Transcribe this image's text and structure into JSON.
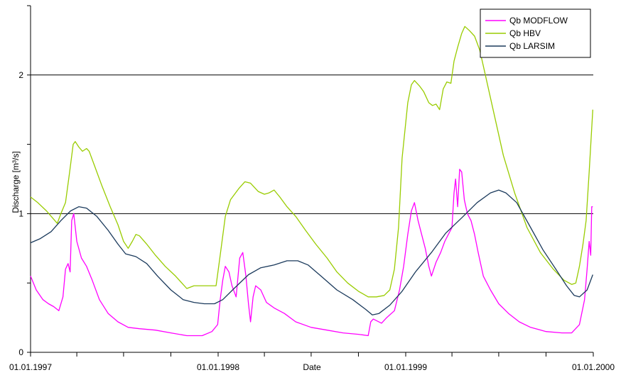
{
  "chart_data": {
    "type": "line",
    "xlabel": "Date",
    "ylabel": "Discharge [m³/s]",
    "ylim": [
      0,
      2.5
    ],
    "xlim": [
      "1997-01-01",
      "2000-01-01"
    ],
    "yticks": [
      {
        "value": 0,
        "label": "0"
      },
      {
        "value": 1,
        "label": "1"
      },
      {
        "value": 2,
        "label": "2"
      }
    ],
    "ygrid": [
      1,
      2
    ],
    "xticks_labeled": [
      {
        "date": "1997-01-01",
        "label": "01.01.1997"
      },
      {
        "date": "1998-01-01",
        "label": "01.01.1998"
      },
      {
        "date": "1999-01-01",
        "label": "01.01.1999"
      },
      {
        "date": "2000-01-01",
        "label": "01.01.2000"
      }
    ],
    "xticks_minor": [
      "1997-04-01",
      "1997-07-01",
      "1997-10-01",
      "1998-04-01",
      "1998-07-01",
      "1998-10-01",
      "1999-04-01",
      "1999-07-01",
      "1999-10-01"
    ],
    "legend_position": "top-right",
    "series": [
      {
        "name": "Qb MODFLOW",
        "color": "#ff00ff",
        "points": [
          [
            "1997-01-01",
            0.55
          ],
          [
            "1997-01-12",
            0.45
          ],
          [
            "1997-01-25",
            0.38
          ],
          [
            "1997-02-05",
            0.35
          ],
          [
            "1997-02-15",
            0.33
          ],
          [
            "1997-02-25",
            0.3
          ],
          [
            "1997-03-05",
            0.4
          ],
          [
            "1997-03-10",
            0.6
          ],
          [
            "1997-03-15",
            0.64
          ],
          [
            "1997-03-19",
            0.58
          ],
          [
            "1997-03-22",
            0.95
          ],
          [
            "1997-03-26",
            1.0
          ],
          [
            "1997-04-01",
            0.8
          ],
          [
            "1997-04-10",
            0.68
          ],
          [
            "1997-04-20",
            0.62
          ],
          [
            "1997-05-01",
            0.52
          ],
          [
            "1997-05-15",
            0.38
          ],
          [
            "1997-06-01",
            0.28
          ],
          [
            "1997-06-20",
            0.22
          ],
          [
            "1997-07-10",
            0.18
          ],
          [
            "1997-08-01",
            0.17
          ],
          [
            "1997-09-01",
            0.16
          ],
          [
            "1997-10-01",
            0.14
          ],
          [
            "1997-11-01",
            0.12
          ],
          [
            "1997-12-01",
            0.12
          ],
          [
            "1997-12-20",
            0.15
          ],
          [
            "1997-12-31",
            0.2
          ],
          [
            "1998-01-05",
            0.38
          ],
          [
            "1998-01-10",
            0.52
          ],
          [
            "1998-01-15",
            0.62
          ],
          [
            "1998-01-22",
            0.58
          ],
          [
            "1998-01-28",
            0.48
          ],
          [
            "1998-02-05",
            0.4
          ],
          [
            "1998-02-12",
            0.68
          ],
          [
            "1998-02-18",
            0.72
          ],
          [
            "1998-02-24",
            0.55
          ],
          [
            "1998-03-01",
            0.35
          ],
          [
            "1998-03-05",
            0.22
          ],
          [
            "1998-03-10",
            0.4
          ],
          [
            "1998-03-15",
            0.48
          ],
          [
            "1998-03-25",
            0.45
          ],
          [
            "1998-04-05",
            0.36
          ],
          [
            "1998-04-20",
            0.32
          ],
          [
            "1998-05-10",
            0.28
          ],
          [
            "1998-06-01",
            0.22
          ],
          [
            "1998-07-01",
            0.18
          ],
          [
            "1998-08-01",
            0.16
          ],
          [
            "1998-09-01",
            0.14
          ],
          [
            "1998-10-01",
            0.13
          ],
          [
            "1998-10-20",
            0.12
          ],
          [
            "1998-10-25",
            0.22
          ],
          [
            "1998-10-30",
            0.24
          ],
          [
            "1998-11-15",
            0.21
          ],
          [
            "1998-11-25",
            0.25
          ],
          [
            "1998-12-10",
            0.3
          ],
          [
            "1998-12-20",
            0.45
          ],
          [
            "1998-12-28",
            0.62
          ],
          [
            "1999-01-05",
            0.85
          ],
          [
            "1999-01-12",
            1.02
          ],
          [
            "1999-01-18",
            1.08
          ],
          [
            "1999-01-25",
            0.95
          ],
          [
            "1999-02-01",
            0.85
          ],
          [
            "1999-02-08",
            0.75
          ],
          [
            "1999-02-15",
            0.62
          ],
          [
            "1999-02-20",
            0.55
          ],
          [
            "1999-03-01",
            0.65
          ],
          [
            "1999-03-10",
            0.72
          ],
          [
            "1999-03-18",
            0.8
          ],
          [
            "1999-03-25",
            0.85
          ],
          [
            "1999-04-01",
            0.9
          ],
          [
            "1999-04-05",
            1.15
          ],
          [
            "1999-04-08",
            1.25
          ],
          [
            "1999-04-12",
            1.05
          ],
          [
            "1999-04-16",
            1.32
          ],
          [
            "1999-04-20",
            1.3
          ],
          [
            "1999-04-25",
            1.1
          ],
          [
            "1999-05-01",
            1.0
          ],
          [
            "1999-05-08",
            0.95
          ],
          [
            "1999-05-15",
            0.85
          ],
          [
            "1999-05-22",
            0.72
          ],
          [
            "1999-06-01",
            0.55
          ],
          [
            "1999-06-15",
            0.45
          ],
          [
            "1999-07-01",
            0.35
          ],
          [
            "1999-07-20",
            0.28
          ],
          [
            "1999-08-10",
            0.22
          ],
          [
            "1999-09-01",
            0.18
          ],
          [
            "1999-10-01",
            0.15
          ],
          [
            "1999-11-01",
            0.14
          ],
          [
            "1999-11-20",
            0.14
          ],
          [
            "1999-12-05",
            0.2
          ],
          [
            "1999-12-15",
            0.38
          ],
          [
            "1999-12-20",
            0.6
          ],
          [
            "1999-12-24",
            0.8
          ],
          [
            "1999-12-27",
            0.7
          ],
          [
            "1999-12-29",
            1.05
          ],
          [
            "1999-12-31",
            1.05
          ]
        ]
      },
      {
        "name": "Qb HBV",
        "color": "#99cc00",
        "points": [
          [
            "1997-01-01",
            1.12
          ],
          [
            "1997-01-15",
            1.08
          ],
          [
            "1997-02-01",
            1.02
          ],
          [
            "1997-02-15",
            0.96
          ],
          [
            "1997-02-22",
            0.93
          ],
          [
            "1997-03-01",
            1.0
          ],
          [
            "1997-03-10",
            1.08
          ],
          [
            "1997-03-18",
            1.3
          ],
          [
            "1997-03-25",
            1.5
          ],
          [
            "1997-03-29",
            1.52
          ],
          [
            "1997-04-05",
            1.48
          ],
          [
            "1997-04-12",
            1.45
          ],
          [
            "1997-04-20",
            1.47
          ],
          [
            "1997-04-25",
            1.45
          ],
          [
            "1997-05-05",
            1.35
          ],
          [
            "1997-05-20",
            1.2
          ],
          [
            "1997-06-05",
            1.05
          ],
          [
            "1997-06-20",
            0.92
          ],
          [
            "1997-07-01",
            0.8
          ],
          [
            "1997-07-10",
            0.75
          ],
          [
            "1997-07-18",
            0.8
          ],
          [
            "1997-07-25",
            0.85
          ],
          [
            "1997-08-01",
            0.84
          ],
          [
            "1997-08-15",
            0.78
          ],
          [
            "1997-09-01",
            0.7
          ],
          [
            "1997-09-20",
            0.62
          ],
          [
            "1997-10-10",
            0.55
          ],
          [
            "1997-11-01",
            0.46
          ],
          [
            "1997-11-15",
            0.48
          ],
          [
            "1997-12-01",
            0.48
          ],
          [
            "1997-12-15",
            0.48
          ],
          [
            "1997-12-28",
            0.48
          ],
          [
            "1998-01-05",
            0.7
          ],
          [
            "1998-01-15",
            0.98
          ],
          [
            "1998-01-25",
            1.1
          ],
          [
            "1998-02-10",
            1.18
          ],
          [
            "1998-02-22",
            1.23
          ],
          [
            "1998-03-05",
            1.22
          ],
          [
            "1998-03-20",
            1.16
          ],
          [
            "1998-04-01",
            1.14
          ],
          [
            "1998-04-10",
            1.15
          ],
          [
            "1998-04-20",
            1.17
          ],
          [
            "1998-05-01",
            1.12
          ],
          [
            "1998-05-15",
            1.05
          ],
          [
            "1998-06-01",
            0.98
          ],
          [
            "1998-06-20",
            0.88
          ],
          [
            "1998-07-10",
            0.78
          ],
          [
            "1998-08-01",
            0.68
          ],
          [
            "1998-08-20",
            0.58
          ],
          [
            "1998-09-10",
            0.5
          ],
          [
            "1998-10-01",
            0.44
          ],
          [
            "1998-10-20",
            0.4
          ],
          [
            "1998-11-05",
            0.4
          ],
          [
            "1998-11-20",
            0.41
          ],
          [
            "1998-12-01",
            0.45
          ],
          [
            "1998-12-10",
            0.6
          ],
          [
            "1998-12-18",
            0.9
          ],
          [
            "1998-12-25",
            1.4
          ],
          [
            "1999-01-05",
            1.8
          ],
          [
            "1999-01-12",
            1.93
          ],
          [
            "1999-01-18",
            1.96
          ],
          [
            "1999-01-28",
            1.92
          ],
          [
            "1999-02-05",
            1.88
          ],
          [
            "1999-02-15",
            1.8
          ],
          [
            "1999-02-22",
            1.78
          ],
          [
            "1999-03-01",
            1.79
          ],
          [
            "1999-03-08",
            1.75
          ],
          [
            "1999-03-15",
            1.9
          ],
          [
            "1999-03-22",
            1.95
          ],
          [
            "1999-03-30",
            1.94
          ],
          [
            "1999-04-05",
            2.1
          ],
          [
            "1999-04-12",
            2.2
          ],
          [
            "1999-04-20",
            2.3
          ],
          [
            "1999-04-26",
            2.35
          ],
          [
            "1999-05-05",
            2.32
          ],
          [
            "1999-05-15",
            2.28
          ],
          [
            "1999-05-25",
            2.18
          ],
          [
            "1999-06-05",
            2.0
          ],
          [
            "1999-06-20",
            1.75
          ],
          [
            "1999-07-10",
            1.42
          ],
          [
            "1999-08-01",
            1.15
          ],
          [
            "1999-08-25",
            0.9
          ],
          [
            "1999-09-20",
            0.72
          ],
          [
            "1999-10-15",
            0.6
          ],
          [
            "1999-11-05",
            0.52
          ],
          [
            "1999-11-20",
            0.49
          ],
          [
            "1999-11-28",
            0.5
          ],
          [
            "1999-12-05",
            0.62
          ],
          [
            "1999-12-12",
            0.78
          ],
          [
            "1999-12-18",
            0.95
          ],
          [
            "1999-12-24",
            1.3
          ],
          [
            "1999-12-31",
            1.75
          ]
        ]
      },
      {
        "name": "Qb LARSIM",
        "color": "#1b3a5c",
        "points": [
          [
            "1997-01-01",
            0.79
          ],
          [
            "1997-01-20",
            0.82
          ],
          [
            "1997-02-10",
            0.87
          ],
          [
            "1997-03-01",
            0.95
          ],
          [
            "1997-03-20",
            1.02
          ],
          [
            "1997-04-05",
            1.05
          ],
          [
            "1997-04-20",
            1.04
          ],
          [
            "1997-05-10",
            0.98
          ],
          [
            "1997-06-01",
            0.88
          ],
          [
            "1997-06-20",
            0.78
          ],
          [
            "1997-07-05",
            0.71
          ],
          [
            "1997-07-25",
            0.69
          ],
          [
            "1997-08-15",
            0.64
          ],
          [
            "1997-09-05",
            0.55
          ],
          [
            "1997-10-01",
            0.45
          ],
          [
            "1997-10-25",
            0.38
          ],
          [
            "1997-11-15",
            0.36
          ],
          [
            "1997-12-05",
            0.35
          ],
          [
            "1997-12-25",
            0.35
          ],
          [
            "1998-01-10",
            0.38
          ],
          [
            "1998-02-01",
            0.46
          ],
          [
            "1998-03-01",
            0.56
          ],
          [
            "1998-03-25",
            0.61
          ],
          [
            "1998-04-20",
            0.63
          ],
          [
            "1998-05-15",
            0.66
          ],
          [
            "1998-06-05",
            0.66
          ],
          [
            "1998-06-25",
            0.63
          ],
          [
            "1998-07-20",
            0.55
          ],
          [
            "1998-08-20",
            0.45
          ],
          [
            "1998-09-20",
            0.38
          ],
          [
            "1998-10-15",
            0.31
          ],
          [
            "1998-10-28",
            0.27
          ],
          [
            "1998-11-10",
            0.28
          ],
          [
            "1998-12-01",
            0.34
          ],
          [
            "1998-12-25",
            0.44
          ],
          [
            "1999-01-20",
            0.58
          ],
          [
            "1999-02-20",
            0.72
          ],
          [
            "1999-03-20",
            0.86
          ],
          [
            "1999-04-20",
            0.97
          ],
          [
            "1999-05-20",
            1.08
          ],
          [
            "1999-06-15",
            1.15
          ],
          [
            "1999-07-01",
            1.17
          ],
          [
            "1999-07-15",
            1.15
          ],
          [
            "1999-08-05",
            1.08
          ],
          [
            "1999-09-01",
            0.9
          ],
          [
            "1999-09-25",
            0.74
          ],
          [
            "1999-10-20",
            0.6
          ],
          [
            "1999-11-10",
            0.48
          ],
          [
            "1999-11-25",
            0.41
          ],
          [
            "1999-12-05",
            0.4
          ],
          [
            "1999-12-20",
            0.45
          ],
          [
            "1999-12-31",
            0.56
          ]
        ]
      }
    ]
  }
}
